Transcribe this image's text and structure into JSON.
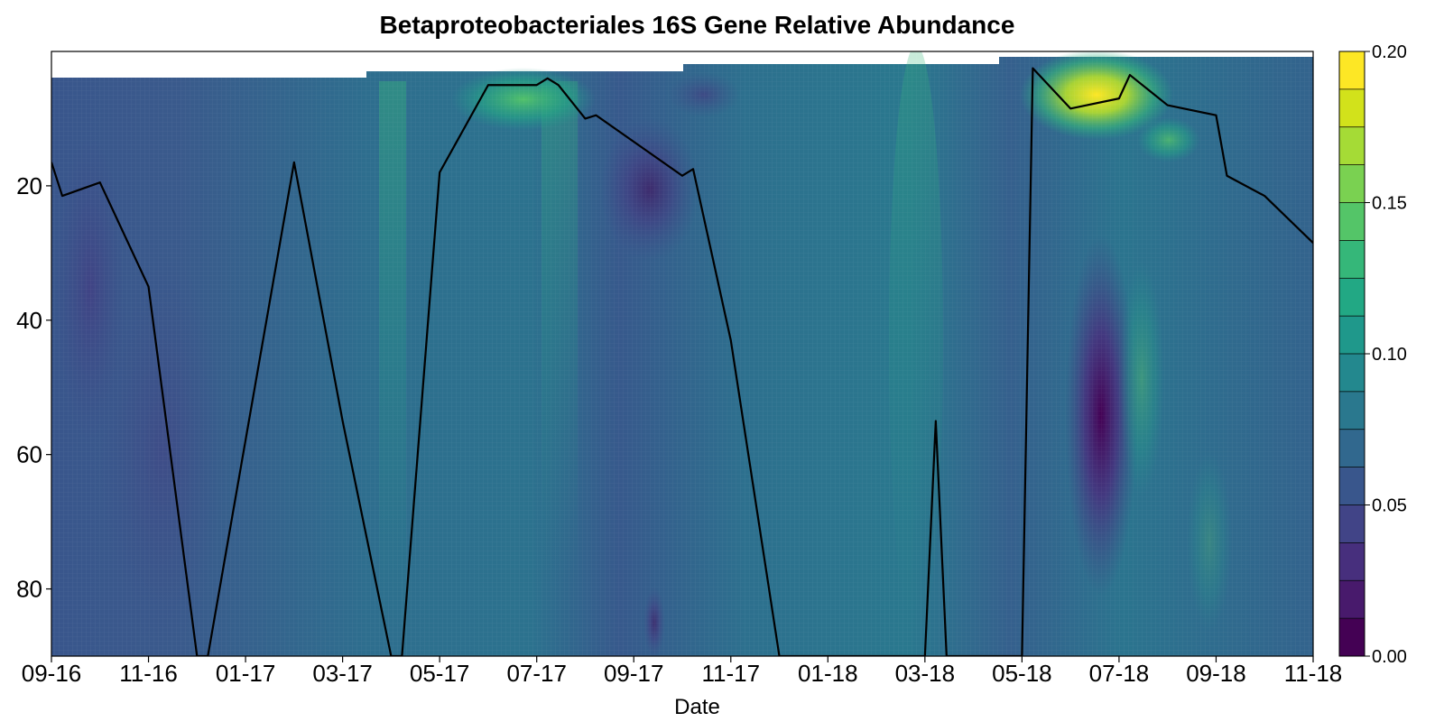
{
  "chart_data": {
    "type": "heatmap",
    "title": "Betaproteobacteriales 16S Gene Relative Abundance",
    "xlabel": "Date",
    "ylabel": "",
    "x_ticks": [
      "09-16",
      "11-16",
      "01-17",
      "03-17",
      "05-17",
      "07-17",
      "09-17",
      "11-17",
      "01-18",
      "03-18",
      "05-18",
      "07-18",
      "09-18",
      "11-18"
    ],
    "y_ticks": [
      20,
      40,
      60,
      80
    ],
    "ylim": [
      90,
      0
    ],
    "y_reversed": true,
    "colorbar": {
      "min": 0.0,
      "max": 0.2,
      "ticks": [
        "0.00",
        "0.05",
        "0.10",
        "0.15",
        "0.20"
      ],
      "colors": [
        "#440154",
        "#481a6c",
        "#472f7d",
        "#414487",
        "#39568c",
        "#31688e",
        "#2a788e",
        "#23888e",
        "#1f988b",
        "#22a884",
        "#35b779",
        "#54c568",
        "#7ad151",
        "#a5db36",
        "#d2e21b",
        "#fde725"
      ]
    },
    "grid": false,
    "line_series": {
      "color": "#000000",
      "points": [
        {
          "x": "09-16",
          "y": 16.5
        },
        {
          "x": "09-16",
          "y": 21.5
        },
        {
          "x": "10-16",
          "y": 19.5
        },
        {
          "x": "11-16",
          "y": 35
        },
        {
          "x": "12-16",
          "y": 90
        },
        {
          "x": "12-16",
          "y": 90
        },
        {
          "x": "02-17",
          "y": 16.5
        },
        {
          "x": "03-17",
          "y": 55
        },
        {
          "x": "04-17",
          "y": 90
        },
        {
          "x": "04-17",
          "y": 90
        },
        {
          "x": "05-17",
          "y": 18
        },
        {
          "x": "06-17",
          "y": 5
        },
        {
          "x": "07-17",
          "y": 5
        },
        {
          "x": "07-17",
          "y": 4
        },
        {
          "x": "07-17",
          "y": 5
        },
        {
          "x": "08-17",
          "y": 10
        },
        {
          "x": "08-17",
          "y": 9.5
        },
        {
          "x": "10-17",
          "y": 18.5
        },
        {
          "x": "10-17",
          "y": 17.5
        },
        {
          "x": "11-17",
          "y": 43
        },
        {
          "x": "12-17",
          "y": 90
        },
        {
          "x": "03-18",
          "y": 90
        },
        {
          "x": "03-18",
          "y": 55
        },
        {
          "x": "03-18",
          "y": 90
        },
        {
          "x": "05-18",
          "y": 90
        },
        {
          "x": "05-18",
          "y": 2.5
        },
        {
          "x": "06-18",
          "y": 8.5
        },
        {
          "x": "07-18",
          "y": 7
        },
        {
          "x": "07-18",
          "y": 3.5
        },
        {
          "x": "08-18",
          "y": 8
        },
        {
          "x": "09-18",
          "y": 9.5
        },
        {
          "x": "09-18",
          "y": 18.5
        },
        {
          "x": "10-18",
          "y": 21.5
        },
        {
          "x": "11-18",
          "y": 28.5
        }
      ]
    }
  }
}
